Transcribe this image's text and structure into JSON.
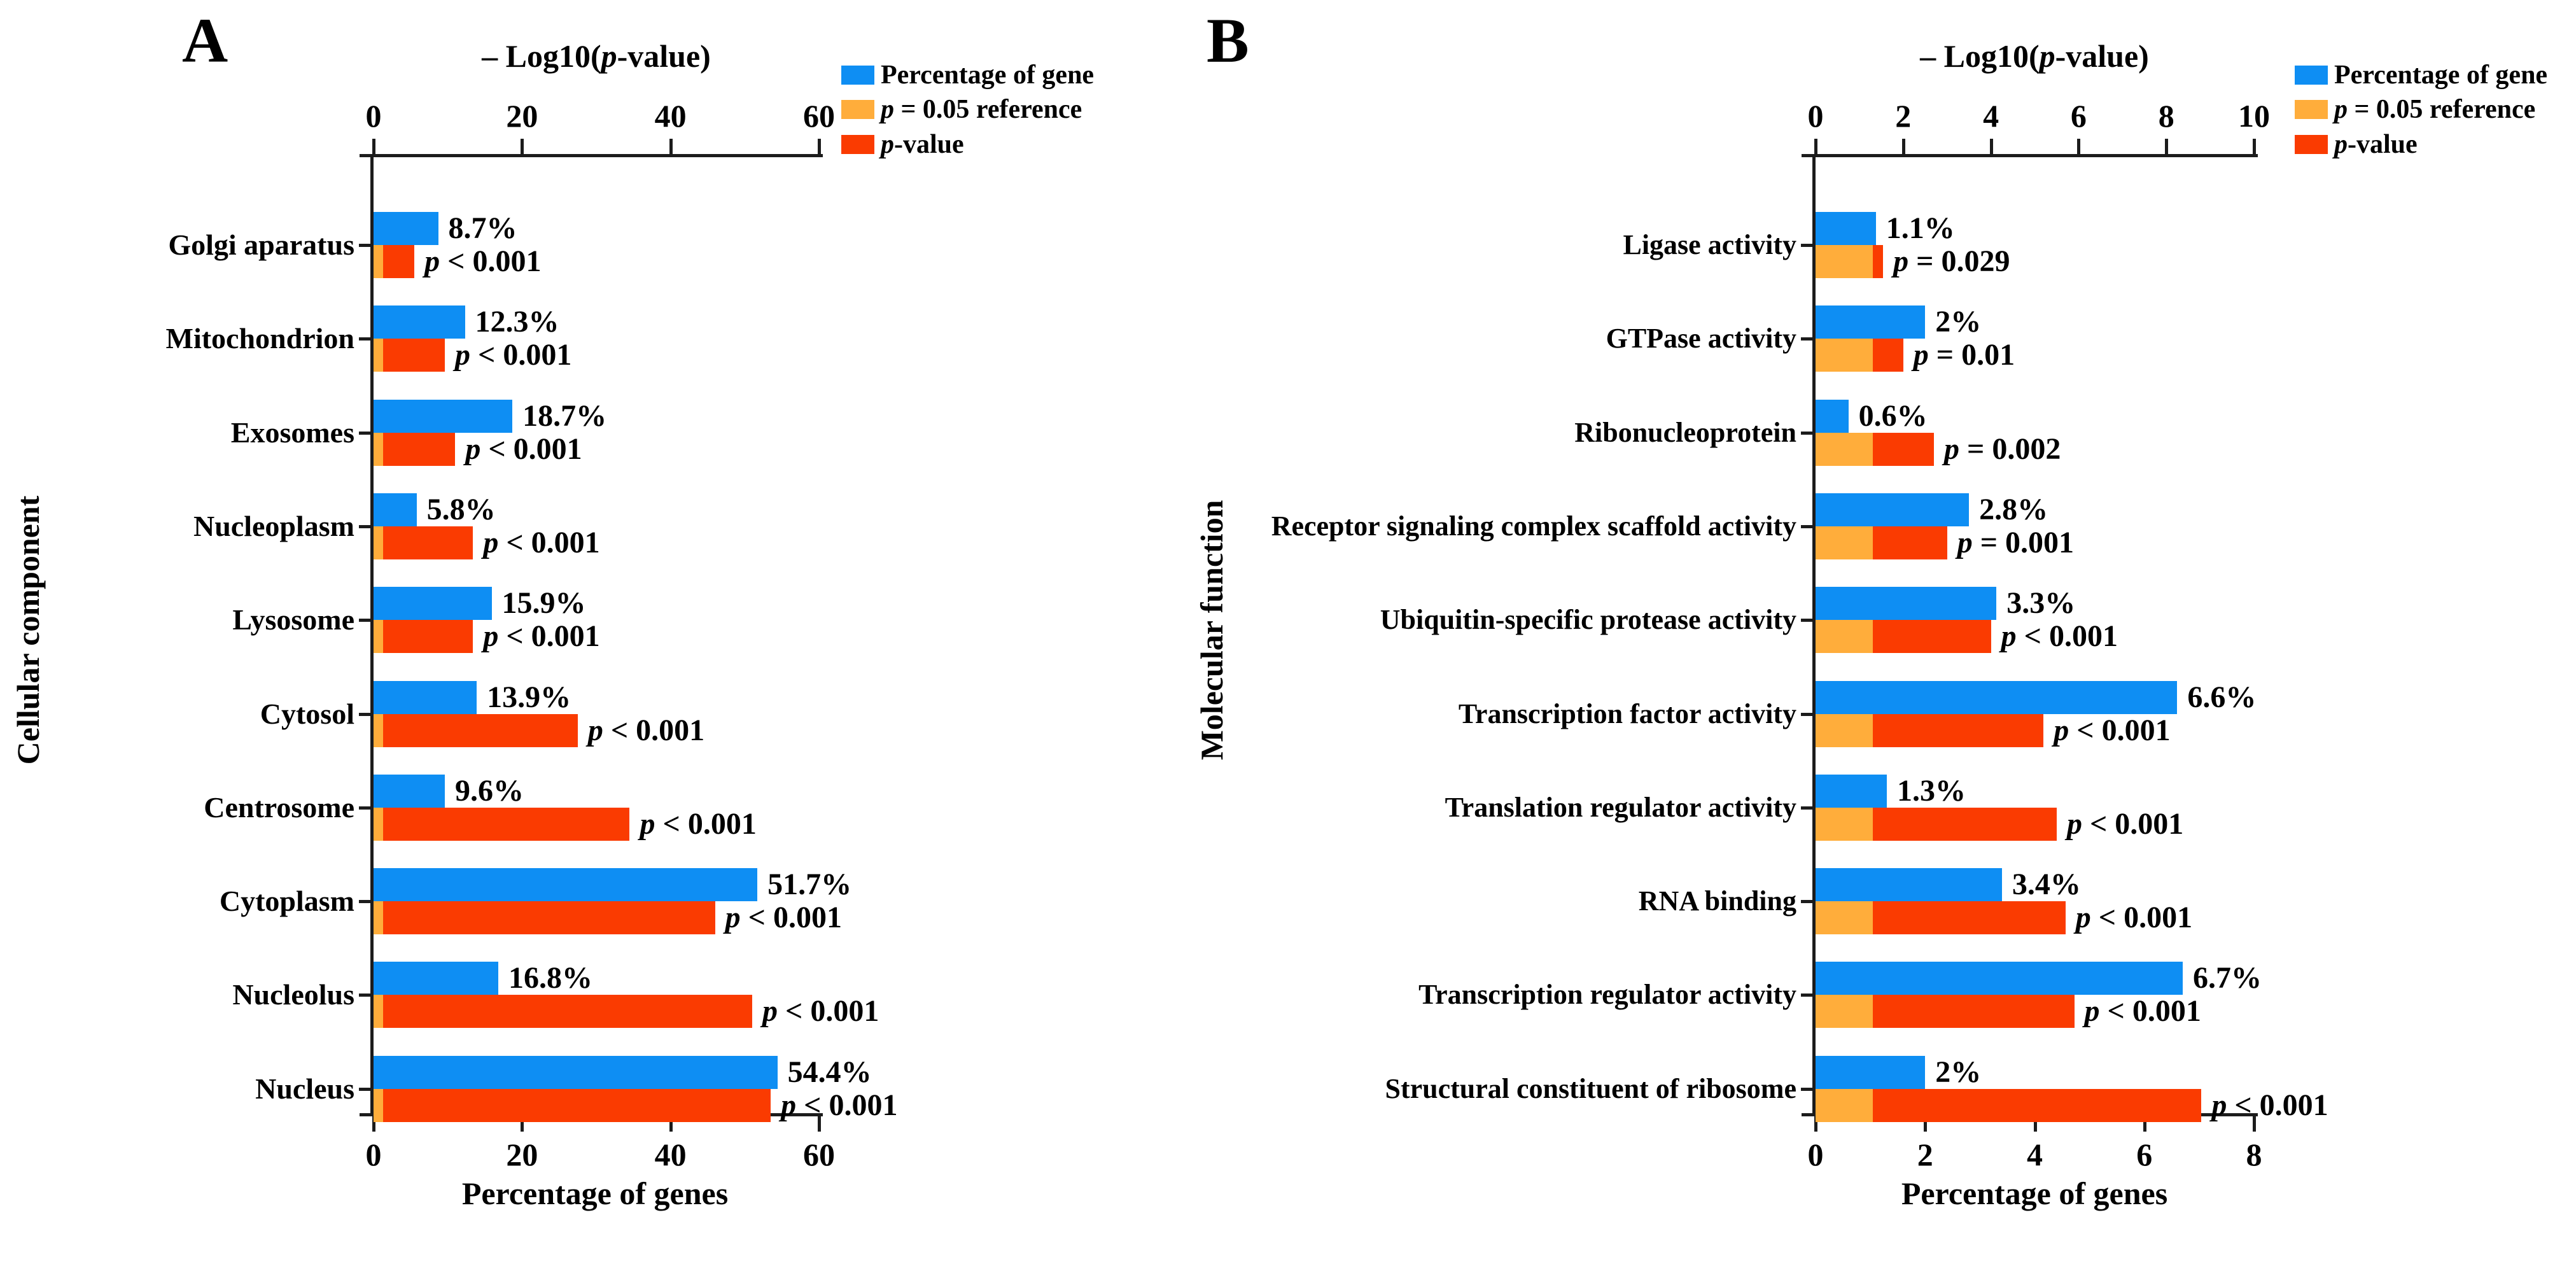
{
  "figure": {
    "background": "#ffffff",
    "colors": {
      "blue": "#0e8ef3",
      "orange": "#ffad3b",
      "red": "#fa3b01",
      "axis": "#1c1c1c",
      "text": "#000000"
    },
    "legend": {
      "items": [
        {
          "color": "blue",
          "label": "Percentage of gene"
        },
        {
          "color": "orange",
          "label": "p = 0.05 reference"
        },
        {
          "color": "red",
          "label": "p-value"
        }
      ]
    }
  },
  "chart_data": [
    {
      "type": "bar",
      "panel_letter": "A",
      "orientation": "horizontal",
      "group_axis_label": "Cellular component",
      "top_axis": {
        "title": "– Log10(p-value)",
        "ticks": [
          0,
          20,
          40,
          60
        ],
        "range": [
          0,
          60
        ]
      },
      "bottom_axis": {
        "title": "Percentage of genes",
        "ticks": [
          0,
          20,
          40,
          60
        ],
        "range": [
          0,
          60
        ]
      },
      "reference": {
        "name": "p = 0.05 reference",
        "neglog10": 1.3
      },
      "grid": false,
      "legend_position": "top-right",
      "categories": [
        "Golgi aparatus",
        "Mitochondrion",
        "Exosomes",
        "Nucleoplasm",
        "Lysosome",
        "Cytosol",
        "Centrosome",
        "Cytoplasm",
        "Nucleolus",
        "Nucleus"
      ],
      "series": [
        {
          "name": "Percentage of gene",
          "axis": "bottom",
          "values": [
            8.7,
            12.3,
            18.7,
            5.8,
            15.9,
            13.9,
            9.6,
            51.7,
            16.8,
            54.4
          ],
          "labels": [
            "8.7%",
            "12.3%",
            "18.7%",
            "5.8%",
            "15.9%",
            "13.9%",
            "9.6%",
            "51.7%",
            "16.8%",
            "54.4%"
          ]
        },
        {
          "name": "p-value",
          "axis": "top",
          "values": [
            5.5,
            9.6,
            11,
            13.4,
            13.4,
            27.5,
            34.5,
            46,
            51,
            53.5
          ],
          "labels": [
            "p < 0.001",
            "p < 0.001",
            "p < 0.001",
            "p < 0.001",
            "p < 0.001",
            "p < 0.001",
            "p < 0.001",
            "p < 0.001",
            "p < 0.001",
            "p < 0.001"
          ]
        }
      ]
    },
    {
      "type": "bar",
      "panel_letter": "B",
      "orientation": "horizontal",
      "group_axis_label": "Molecular function",
      "top_axis": {
        "title": "– Log10(p-value)",
        "ticks": [
          0,
          2,
          4,
          6,
          8,
          10
        ],
        "range": [
          0,
          10
        ]
      },
      "bottom_axis": {
        "title": "Percentage of genes",
        "ticks": [
          0,
          2,
          4,
          6,
          8
        ],
        "range": [
          0,
          8
        ]
      },
      "reference": {
        "name": "p = 0.05 reference",
        "neglog10": 1.3
      },
      "grid": false,
      "legend_position": "top-right",
      "categories": [
        "Ligase activity",
        "GTPase activity",
        "Ribonucleoprotein",
        "Receptor signaling complex scaffold activity",
        "Ubiquitin-specific protease activity",
        "Transcription factor activity",
        "Translation regulator activity",
        "RNA binding",
        "Transcription regulator activity",
        "Structural constituent of ribosome"
      ],
      "series": [
        {
          "name": "Percentage of gene",
          "axis": "bottom",
          "values": [
            1.1,
            2,
            0.6,
            2.8,
            3.3,
            6.6,
            1.3,
            3.4,
            6.7,
            2
          ],
          "labels": [
            "1.1%",
            "2%",
            "0.6%",
            "2.8%",
            "3.3%",
            "6.6%",
            "1.3%",
            "3.4%",
            "6.7%",
            "2%"
          ]
        },
        {
          "name": "p-value",
          "axis": "top",
          "values": [
            1.54,
            2,
            2.7,
            3,
            4,
            5.2,
            5.5,
            5.7,
            5.9,
            8.8
          ],
          "labels": [
            "p = 0.029",
            "p = 0.01",
            "p = 0.002",
            "p = 0.001",
            "p < 0.001",
            "p < 0.001",
            "p < 0.001",
            "p < 0.001",
            "p < 0.001",
            "p < 0.001"
          ]
        }
      ]
    }
  ]
}
